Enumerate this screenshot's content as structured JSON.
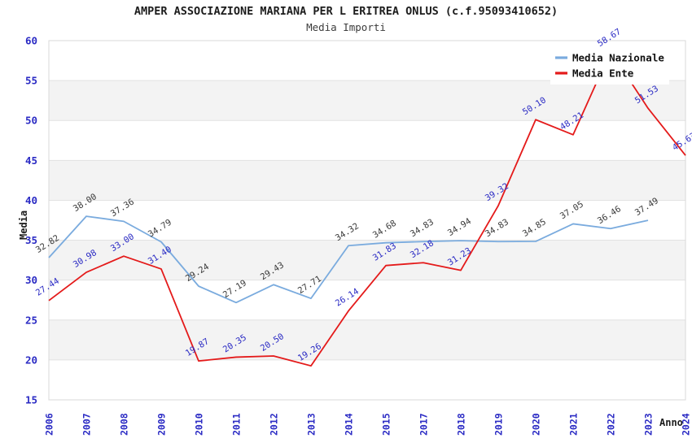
{
  "title": "AMPER ASSOCIAZIONE MARIANA PER L ERITREA ONLUS (c.f.95093410652)",
  "subtitle": "Media Importi",
  "chart_data": {
    "type": "line",
    "title": "AMPER ASSOCIAZIONE MARIANA PER L ERITREA ONLUS (c.f.95093410652)",
    "subtitle": "Media Importi",
    "xlabel": "Anno",
    "ylabel": "Media",
    "ylim": [
      15,
      60
    ],
    "yticks": [
      15,
      20,
      25,
      30,
      35,
      40,
      45,
      50,
      55,
      60
    ],
    "grid": true,
    "band_color": "#f3f3f3",
    "grid_line_color": "#e2e2e2",
    "plot_border_color": "#d8d8d8",
    "axis_label_color": "#2b2bc4",
    "legend_position": "top-right",
    "categories": [
      "2006",
      "2007",
      "2008",
      "2009",
      "2010",
      "2011",
      "2012",
      "2013",
      "2014",
      "2015",
      "2017",
      "2018",
      "2019",
      "2020",
      "2021",
      "2022",
      "2023",
      "2024"
    ],
    "series": [
      {
        "name": "Media Nazionale",
        "color": "#7aabde",
        "label_color": "#3a3a3a",
        "values": [
          32.82,
          38.0,
          37.36,
          34.79,
          29.24,
          27.19,
          29.43,
          27.71,
          34.32,
          34.68,
          34.83,
          34.94,
          34.83,
          34.85,
          37.05,
          36.46,
          37.49,
          null
        ],
        "labels": [
          "32.82",
          "38.00",
          "37.36",
          "34.79",
          "29.24",
          "27.19",
          "29.43",
          "27.71",
          "34.32",
          "34.68",
          "34.83",
          "34.94",
          "34.83",
          "34.85",
          "37.05",
          "36.46",
          "37.49",
          null
        ]
      },
      {
        "name": "Media Ente",
        "color": "#e41a1a",
        "label_color": "#2b2bc4",
        "values": [
          27.44,
          30.98,
          33.0,
          31.4,
          19.87,
          20.35,
          20.5,
          19.26,
          26.14,
          31.83,
          32.18,
          31.23,
          39.32,
          50.1,
          48.21,
          58.67,
          51.53,
          45.63
        ],
        "labels": [
          "27.44",
          "30.98",
          "33.00",
          "31.40",
          "19.87",
          "20.35",
          "20.50",
          "19.26",
          "26.14",
          "31.83",
          "32.18",
          "31.23",
          "39.32",
          "50.10",
          "48.21",
          "58.67",
          "51.53",
          "45.63"
        ]
      }
    ]
  }
}
